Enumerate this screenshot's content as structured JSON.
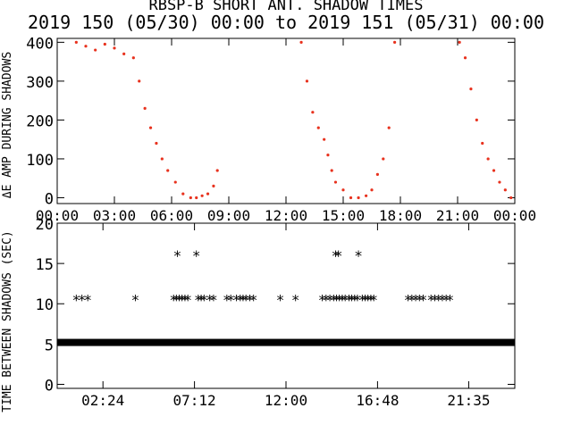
{
  "chart_data": [
    {
      "type": "scatter",
      "title": "RBSP-B SHORT ANT. SHADOW TIMES",
      "subtitle": "2019 150 (05/30) 00:00 to 2019 151 (05/31) 00:00",
      "xlabel": "",
      "ylabel": "ΔE AMP DURING SHADOWS",
      "xlim": [
        0,
        24
      ],
      "ylim": [
        -15,
        410
      ],
      "x_ticks": [
        "00:00",
        "03:00",
        "06:00",
        "09:00",
        "12:00",
        "15:00",
        "18:00",
        "21:00",
        "00:00"
      ],
      "x_tick_values": [
        0,
        3,
        6,
        9,
        12,
        15,
        18,
        21,
        24
      ],
      "y_ticks": [
        "0",
        "100",
        "200",
        "300",
        "400"
      ],
      "y_tick_values": [
        0,
        100,
        200,
        300,
        400
      ],
      "color": "#e8321e",
      "series": [
        {
          "x": [
            1.0,
            1.5,
            2.0,
            2.5,
            3.0,
            3.5,
            4.0,
            4.3,
            4.6,
            4.9,
            5.2,
            5.5,
            5.8,
            6.2,
            6.6,
            7.0,
            7.3,
            7.6,
            7.9,
            8.2,
            8.4,
            12.8,
            13.1,
            13.4,
            13.7,
            14.0,
            14.2,
            14.4,
            14.6,
            15.0,
            15.4,
            15.8,
            16.2,
            16.5,
            16.8,
            17.1,
            17.4,
            17.7,
            21.1,
            21.4,
            21.7,
            22.0,
            22.3,
            22.6,
            22.9,
            23.2,
            23.5,
            23.8
          ],
          "y": [
            400,
            390,
            380,
            395,
            385,
            370,
            360,
            300,
            230,
            180,
            140,
            100,
            70,
            40,
            10,
            0,
            0,
            5,
            10,
            30,
            70,
            400,
            300,
            220,
            180,
            150,
            110,
            70,
            40,
            20,
            0,
            0,
            5,
            20,
            60,
            100,
            180,
            400,
            400,
            360,
            280,
            200,
            140,
            100,
            70,
            40,
            20,
            0
          ]
        }
      ]
    },
    {
      "type": "scatter",
      "title": "",
      "xlabel": "",
      "ylabel": "TIME BETWEEN SHADOWS (SEC)",
      "xlim": [
        0,
        24
      ],
      "ylim": [
        -0.5,
        20
      ],
      "x_ticks": [
        "02:24",
        "07:12",
        "12:00",
        "16:48",
        "21:35"
      ],
      "x_tick_values": [
        2.4,
        7.2,
        12.0,
        16.8,
        21.583
      ],
      "y_ticks": [
        "0",
        "5",
        "10",
        "15",
        "20"
      ],
      "y_tick_values": [
        0,
        5,
        10,
        15,
        20
      ],
      "marker": "*",
      "series": [
        {
          "x": [
            1.0,
            1.3,
            1.6,
            4.1,
            6.1,
            6.25,
            6.4,
            6.55,
            6.7,
            6.85,
            7.4,
            7.55,
            7.7,
            8.0,
            8.2,
            8.9,
            9.1,
            9.4,
            9.6,
            9.75,
            9.9,
            10.1,
            10.3,
            11.7,
            12.5,
            13.9,
            14.1,
            14.3,
            14.5,
            14.65,
            14.8,
            14.95,
            15.1,
            15.3,
            15.45,
            15.6,
            15.75,
            16.0,
            16.15,
            16.3,
            16.45,
            16.6,
            18.4,
            18.6,
            18.8,
            19.0,
            19.2,
            19.6,
            19.8,
            20.0,
            20.2,
            20.4,
            20.6,
            6.3,
            7.3,
            14.6,
            14.75,
            15.8
          ],
          "y": [
            10.5,
            10.5,
            10.5,
            10.5,
            10.5,
            10.5,
            10.5,
            10.5,
            10.5,
            10.5,
            10.5,
            10.5,
            10.5,
            10.5,
            10.5,
            10.5,
            10.5,
            10.5,
            10.5,
            10.5,
            10.5,
            10.5,
            10.5,
            10.5,
            10.5,
            10.5,
            10.5,
            10.5,
            10.5,
            10.5,
            10.5,
            10.5,
            10.5,
            10.5,
            10.5,
            10.5,
            10.5,
            10.5,
            10.5,
            10.5,
            10.5,
            10.5,
            10.5,
            10.5,
            10.5,
            10.5,
            10.5,
            10.5,
            10.5,
            10.5,
            10.5,
            10.5,
            10.5,
            16,
            16,
            16,
            16,
            16
          ],
          "baseline_value": 5.2,
          "baseline_range": [
            0,
            24
          ]
        }
      ]
    }
  ]
}
